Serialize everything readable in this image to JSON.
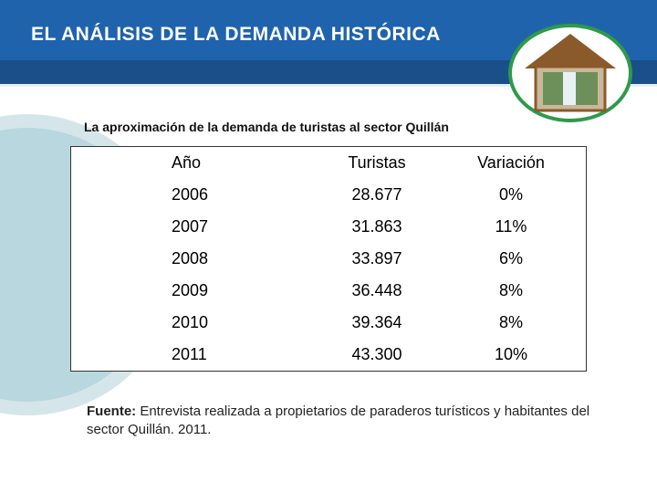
{
  "header": {
    "title": "EL ANÁLISIS DE LA DEMANDA HISTÓRICA"
  },
  "subtitle": "La  aproximación de la demanda de turistas al sector Quillán",
  "table": {
    "columns": [
      "Año",
      "Turistas",
      "Variación"
    ],
    "rows": [
      [
        "2006",
        "28.677",
        "0%"
      ],
      [
        "2007",
        "31.863",
        "11%"
      ],
      [
        "2008",
        "33.897",
        "6%"
      ],
      [
        "2009",
        "36.448",
        "8%"
      ],
      [
        "2010",
        "39.364",
        "8%"
      ],
      [
        "2011",
        "43.300",
        "10%"
      ]
    ]
  },
  "source": {
    "label": "Fuente:",
    "text": " Entrevista realizada a  propietarios de paraderos turísticos y habitantes del sector Quillán. 2011."
  }
}
